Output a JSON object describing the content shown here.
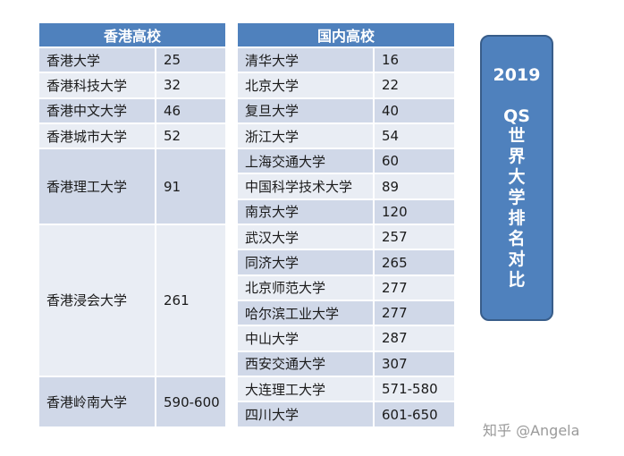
{
  "hk": {
    "header": "香港高校",
    "rows": [
      {
        "name": "香港大学",
        "rank": "25",
        "span": 1
      },
      {
        "name": "香港科技大学",
        "rank": "32",
        "span": 1
      },
      {
        "name": "香港中文大学",
        "rank": "46",
        "span": 1
      },
      {
        "name": "香港城市大学",
        "rank": "52",
        "span": 1
      },
      {
        "name": "香港理工大学",
        "rank": "91",
        "span": 3
      },
      {
        "name": "香港浸会大学",
        "rank": "261",
        "span": 6
      },
      {
        "name": "香港岭南大学",
        "rank": "590-600",
        "span": 2
      }
    ]
  },
  "cn": {
    "header": "国内高校",
    "rows": [
      {
        "name": "清华大学",
        "rank": "16"
      },
      {
        "name": "北京大学",
        "rank": "22"
      },
      {
        "name": "复旦大学",
        "rank": "40"
      },
      {
        "name": "浙江大学",
        "rank": "54"
      },
      {
        "name": "上海交通大学",
        "rank": "60"
      },
      {
        "name": "中国科学技术大学",
        "rank": "89"
      },
      {
        "name": "南京大学",
        "rank": "120"
      },
      {
        "name": "武汉大学",
        "rank": "257"
      },
      {
        "name": "同济大学",
        "rank": "265"
      },
      {
        "name": "北京师范大学",
        "rank": "277"
      },
      {
        "name": "哈尔滨工业大学",
        "rank": "277"
      },
      {
        "name": "中山大学",
        "rank": "287"
      },
      {
        "name": "西安交通大学",
        "rank": "307"
      },
      {
        "name": "大连理工大学",
        "rank": "571-580"
      },
      {
        "name": "四川大学",
        "rank": "601-650"
      }
    ]
  },
  "badge": {
    "year": "2019",
    "qs": "QS",
    "title": "世界大学排名对比"
  },
  "watermark": "知乎 @Angela",
  "colors": {
    "header": "#4f81bd",
    "row_dark": "#d0d8e8",
    "row_light": "#e9edf4"
  }
}
